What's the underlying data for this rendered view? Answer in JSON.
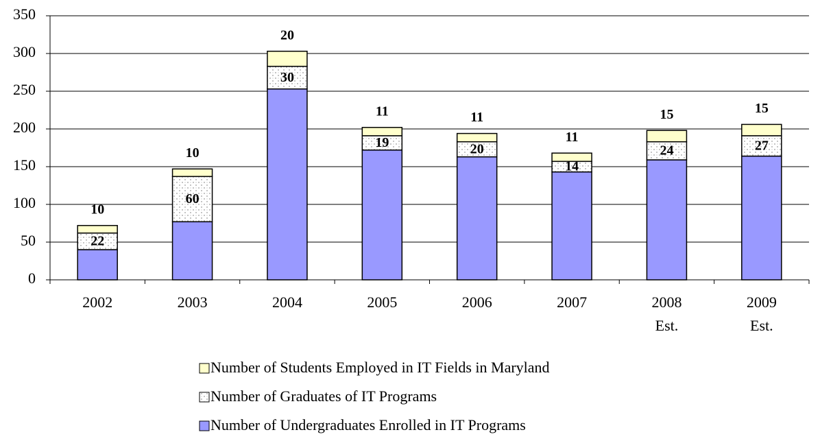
{
  "chart_data": {
    "type": "stacked-bar",
    "categories": [
      "2002",
      "2003",
      "2004",
      "2005",
      "2006",
      "2007",
      "2008\nEst.",
      "2009\nEst."
    ],
    "series": [
      {
        "name": "Number of Undergraduates Enrolled in IT Programs",
        "color": "#9999ff",
        "show_labels": false,
        "values": [
          40,
          77,
          253,
          172,
          163,
          143,
          159,
          164
        ]
      },
      {
        "name": "Number of Graduates of IT Programs",
        "color": "#ffffff",
        "pattern": "dotted",
        "show_labels": true,
        "values": [
          22,
          60,
          30,
          19,
          20,
          14,
          24,
          27
        ]
      },
      {
        "name": "Number of Students Employed in IT Fields in Maryland",
        "color": "#ffffcc",
        "show_labels": true,
        "values": [
          10,
          10,
          20,
          11,
          11,
          11,
          15,
          15
        ]
      }
    ],
    "ylim": [
      0,
      350
    ],
    "yticks": [
      0,
      50,
      100,
      150,
      200,
      250,
      300,
      350
    ],
    "grid": true,
    "legend": "bottom"
  }
}
